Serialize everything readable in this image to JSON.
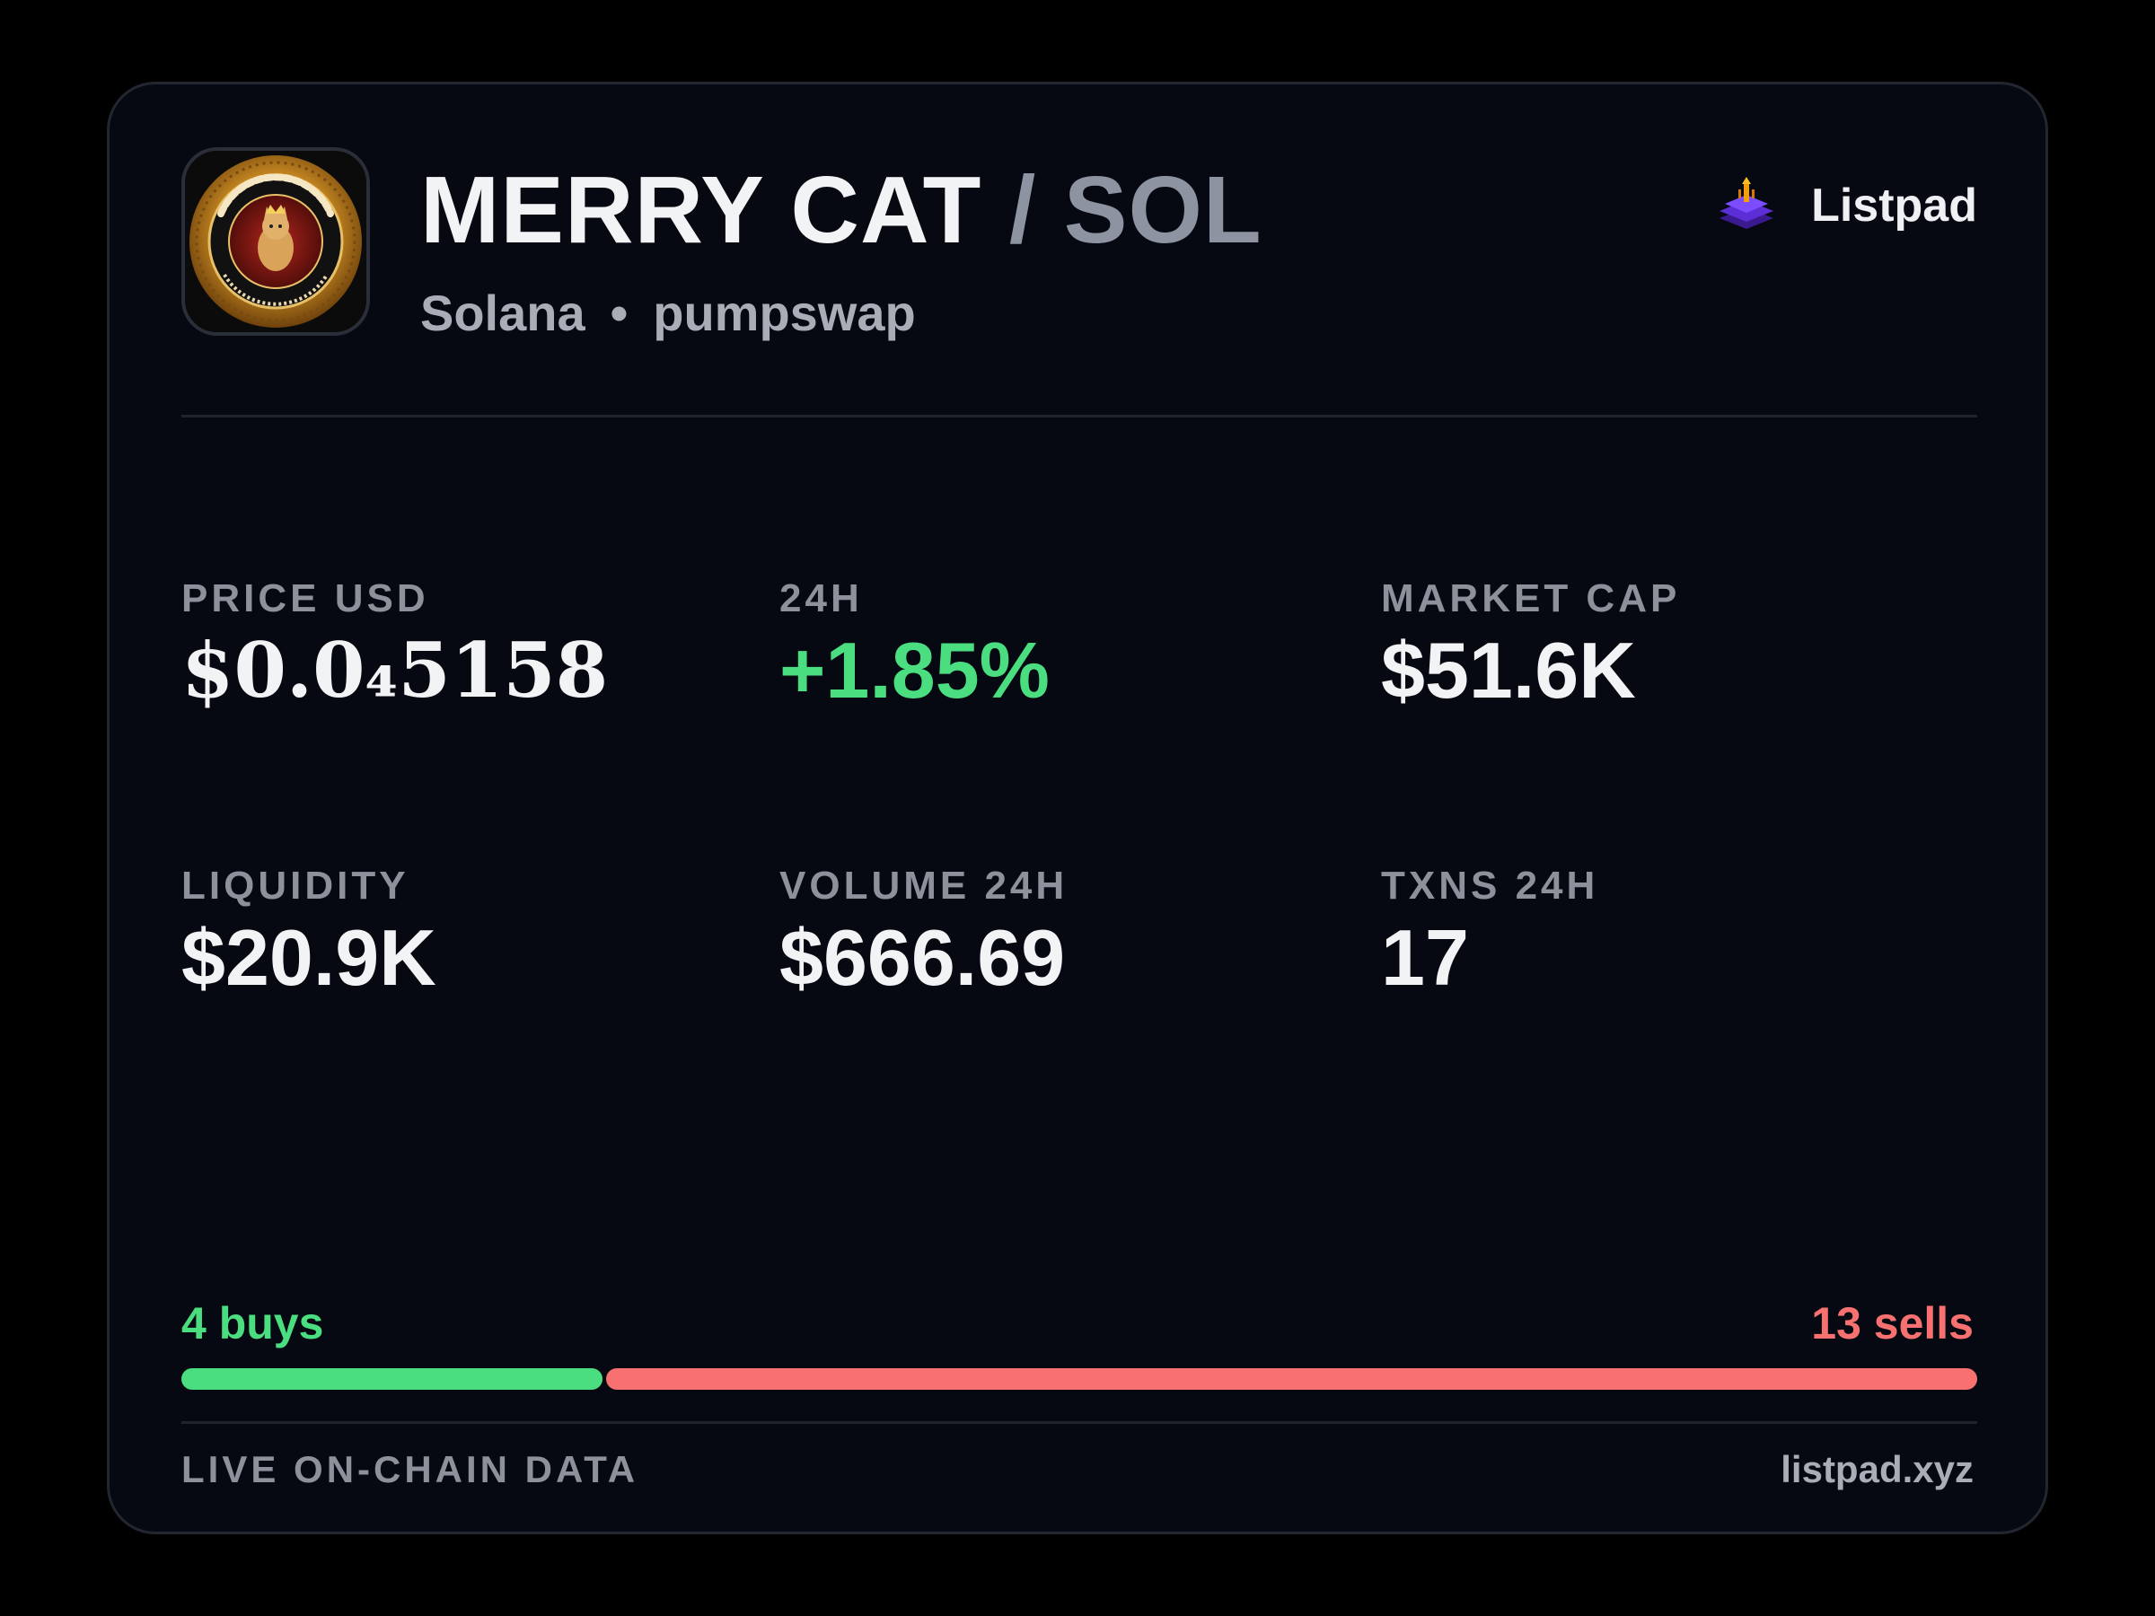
{
  "header": {
    "token_name": "MERRY CAT",
    "separator": "/",
    "quote_token": "SOL",
    "chain": "Solana",
    "bullet": "•",
    "dex": "pumpswap",
    "brand_name": "Listpad",
    "avatar_icon": "merry-cat-coin-logo",
    "brand_icon": "listpad-stack-icon"
  },
  "stats": {
    "price": {
      "label": "PRICE USD",
      "value": "$0.0₄5158"
    },
    "change": {
      "label": "24H",
      "value": "+1.85%"
    },
    "market_cap": {
      "label": "MARKET CAP",
      "value": "$51.6K"
    },
    "liquidity": {
      "label": "LIQUIDITY",
      "value": "$20.9K"
    },
    "volume": {
      "label": "VOLUME 24H",
      "value": "$666.69"
    },
    "txns": {
      "label": "TXNS 24H",
      "value": "17"
    }
  },
  "flow": {
    "buys_label": "4 buys",
    "sells_label": "13 sells",
    "buys": 4,
    "sells": 13,
    "buy_color": "#4ade80",
    "sell_color": "#f87171"
  },
  "footer": {
    "left": "LIVE ON-CHAIN DATA",
    "right": "listpad.xyz"
  },
  "colors": {
    "background": "#000000",
    "card": "#060912",
    "positive": "#4ade80",
    "negative": "#f87171",
    "muted": "#8c919c"
  }
}
